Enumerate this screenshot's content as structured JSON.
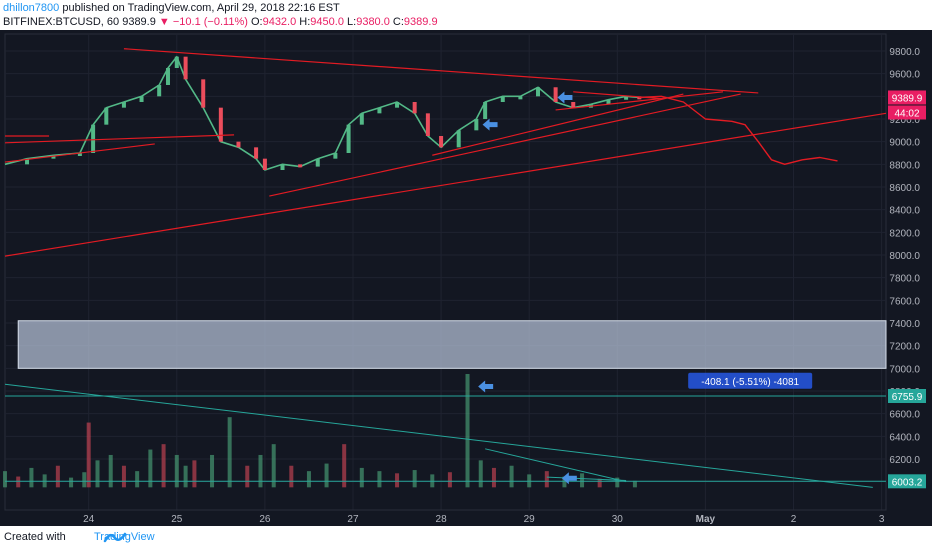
{
  "header": {
    "author": "dhillon7800",
    "published_text": "published on TradingView.com, April 29, 2018 22:16 EST",
    "symbol": "BITFINEX:BTCUSD, 60",
    "last": "9389.9",
    "change": "−10.1 (−0.11%)",
    "open_label": "O:",
    "open_value": "9432.0",
    "high_label": "H:",
    "high_value": "9450.0",
    "low_label": "L:",
    "low_value": "9380.0",
    "close_label": "C:",
    "close_value": "9389.9"
  },
  "footer": {
    "created_with": "Created with",
    "brand": "TradingView"
  },
  "colors": {
    "background": "#131722",
    "up": "#53b987",
    "down": "#eb4d5c",
    "trendline": "#e31b23",
    "zone": "#b7c3d9",
    "price_badge": "#e91e63",
    "axis_text": "#b2b5be"
  },
  "chart_data": {
    "type": "candlestick",
    "interval_minutes": 60,
    "ylim": [
      5750,
      9950
    ],
    "y_ticks": [
      6000,
      6200,
      6400,
      6600,
      6800,
      7000,
      7200,
      7400,
      7600,
      7800,
      8000,
      8200,
      8400,
      8600,
      8800,
      9000,
      9200,
      9400,
      9600,
      9800
    ],
    "y_tick_labels": [
      "6000.0",
      "6200.0",
      "6400.0",
      "6600.0",
      "6800.0",
      "7000.0",
      "7200.0",
      "7400.0",
      "7600.0",
      "7800.0",
      "8000.0",
      "8200.0",
      "8400.0",
      "8600.0",
      "8800.0",
      "9000.0",
      "9200.0",
      "9400.0",
      "9600.0",
      "9800.0"
    ],
    "x_ticks": [
      {
        "day": 24,
        "label": "24"
      },
      {
        "day": 25,
        "label": "25"
      },
      {
        "day": 26,
        "label": "26"
      },
      {
        "day": 27,
        "label": "27"
      },
      {
        "day": 28,
        "label": "28"
      },
      {
        "day": 29,
        "label": "29"
      },
      {
        "day": 30,
        "label": "30"
      },
      {
        "day": 31,
        "label": "May"
      },
      {
        "day": 32,
        "label": "2"
      },
      {
        "day": 33,
        "label": "3"
      }
    ],
    "xlim": [
      23.05,
      33.05
    ],
    "price_series": [
      [
        23.05,
        8800
      ],
      [
        23.3,
        8850
      ],
      [
        23.6,
        8880
      ],
      [
        23.9,
        8900
      ],
      [
        24.05,
        9150
      ],
      [
        24.2,
        9300
      ],
      [
        24.4,
        9350
      ],
      [
        24.6,
        9400
      ],
      [
        24.8,
        9500
      ],
      [
        24.9,
        9650
      ],
      [
        25.0,
        9750
      ],
      [
        25.1,
        9550
      ],
      [
        25.3,
        9300
      ],
      [
        25.5,
        9000
      ],
      [
        25.7,
        8950
      ],
      [
        25.9,
        8850
      ],
      [
        26.0,
        8750
      ],
      [
        26.2,
        8800
      ],
      [
        26.4,
        8780
      ],
      [
        26.6,
        8850
      ],
      [
        26.8,
        8900
      ],
      [
        26.95,
        9150
      ],
      [
        27.1,
        9250
      ],
      [
        27.3,
        9300
      ],
      [
        27.5,
        9350
      ],
      [
        27.7,
        9250
      ],
      [
        27.85,
        9050
      ],
      [
        28.0,
        8950
      ],
      [
        28.2,
        9100
      ],
      [
        28.4,
        9200
      ],
      [
        28.5,
        9350
      ],
      [
        28.7,
        9400
      ],
      [
        28.9,
        9400
      ],
      [
        29.1,
        9480
      ],
      [
        29.3,
        9350
      ],
      [
        29.5,
        9300
      ],
      [
        29.7,
        9330
      ],
      [
        29.9,
        9370
      ],
      [
        30.1,
        9400
      ],
      [
        30.25,
        9390
      ]
    ],
    "volume_series": [
      [
        23.05,
        150
      ],
      [
        23.2,
        100
      ],
      [
        23.35,
        180
      ],
      [
        23.5,
        120
      ],
      [
        23.65,
        200
      ],
      [
        23.8,
        90
      ],
      [
        23.95,
        140
      ],
      [
        24.0,
        600
      ],
      [
        24.1,
        250
      ],
      [
        24.25,
        300
      ],
      [
        24.4,
        200
      ],
      [
        24.55,
        150
      ],
      [
        24.7,
        350
      ],
      [
        24.85,
        400
      ],
      [
        25.0,
        300
      ],
      [
        25.1,
        200
      ],
      [
        25.2,
        250
      ],
      [
        25.4,
        300
      ],
      [
        25.6,
        650
      ],
      [
        25.8,
        200
      ],
      [
        25.95,
        300
      ],
      [
        26.1,
        400
      ],
      [
        26.3,
        200
      ],
      [
        26.5,
        150
      ],
      [
        26.7,
        220
      ],
      [
        26.9,
        400
      ],
      [
        27.1,
        180
      ],
      [
        27.3,
        150
      ],
      [
        27.5,
        130
      ],
      [
        27.7,
        160
      ],
      [
        27.9,
        120
      ],
      [
        28.1,
        140
      ],
      [
        28.3,
        1050
      ],
      [
        28.45,
        250
      ],
      [
        28.6,
        180
      ],
      [
        28.8,
        200
      ],
      [
        29.0,
        120
      ],
      [
        29.2,
        150
      ],
      [
        29.4,
        100
      ],
      [
        29.6,
        130
      ],
      [
        29.8,
        80
      ],
      [
        30.0,
        90
      ],
      [
        30.2,
        60
      ]
    ],
    "price_label": "9389.9",
    "countdown_label": "44:02",
    "support_labels": [
      "6755.9",
      "6003.2"
    ],
    "measure_label": "-408.1 (-5.51%) -4081",
    "zone": {
      "from": 7000,
      "to": 7420,
      "x_start": 23.2
    },
    "trendlines": [
      {
        "from": [
          23.05,
          8820
        ],
        "to": [
          24.75,
          8980
        ]
      },
      {
        "from": [
          23.05,
          9050
        ],
        "to": [
          23.55,
          9050
        ]
      },
      {
        "from": [
          23.05,
          8990
        ],
        "to": [
          25.65,
          9060
        ]
      },
      {
        "from": [
          23.05,
          7990
        ],
        "to": [
          33.05,
          9250
        ]
      },
      {
        "from": [
          24.4,
          9820
        ],
        "to": [
          31.6,
          9430
        ]
      },
      {
        "from": [
          26.05,
          8520
        ],
        "to": [
          31.4,
          9420
        ]
      },
      {
        "from": [
          27.9,
          8880
        ],
        "to": [
          30.75,
          9420
        ]
      },
      {
        "from": [
          29.3,
          9280
        ],
        "to": [
          31.2,
          9440
        ]
      },
      {
        "from": [
          29.5,
          9440
        ],
        "to": [
          30.5,
          9380
        ]
      }
    ],
    "projection_path": [
      [
        30.25,
        9390
      ],
      [
        30.5,
        9400
      ],
      [
        30.75,
        9350
      ],
      [
        31.0,
        9200
      ],
      [
        31.3,
        9180
      ],
      [
        31.45,
        9150
      ],
      [
        31.6,
        9000
      ],
      [
        31.75,
        8840
      ],
      [
        31.9,
        8800
      ],
      [
        32.1,
        8840
      ],
      [
        32.3,
        8860
      ],
      [
        32.5,
        8830
      ]
    ],
    "volume_lines": [
      {
        "from": [
          23.05,
          6860
        ],
        "to": [
          32.9,
          5950
        ]
      },
      {
        "from": [
          23.05,
          6755.9
        ],
        "to": [
          33.05,
          6755.9
        ]
      },
      {
        "from": [
          23.05,
          6003.2
        ],
        "to": [
          33.05,
          6003.2
        ]
      },
      {
        "from": [
          28.5,
          6290
        ],
        "to": [
          30.1,
          6000
        ]
      },
      {
        "from": [
          29.2,
          6040
        ],
        "to": [
          30.1,
          6010
        ]
      }
    ],
    "arrows": [
      {
        "x": 29.4,
        "y": 9390
      },
      {
        "x": 28.55,
        "y": 9150
      },
      {
        "x": 28.5,
        "y": 6840
      },
      {
        "x": 29.45,
        "y": 6030
      }
    ]
  }
}
